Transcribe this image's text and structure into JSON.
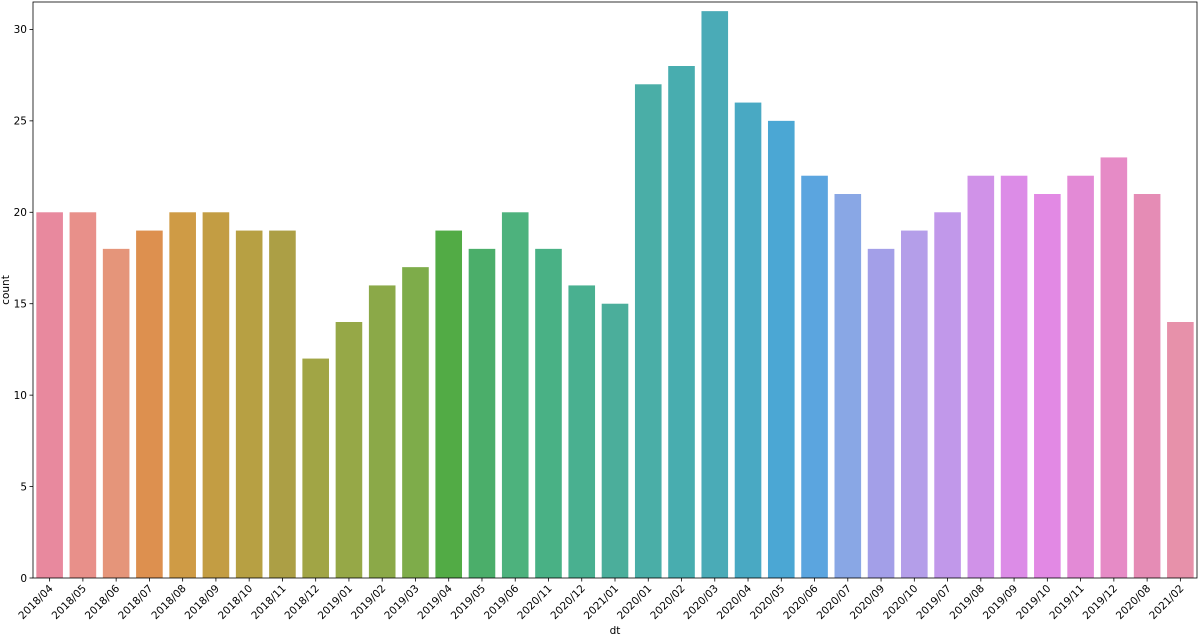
{
  "chart_data": {
    "type": "bar",
    "xlabel": "dt",
    "ylabel": "count",
    "ylim": [
      0,
      31.5
    ],
    "yticks": [
      0,
      5,
      10,
      15,
      20,
      25,
      30
    ],
    "grid": false,
    "categories": [
      "2018/04",
      "2018/05",
      "2018/06",
      "2018/07",
      "2018/08",
      "2018/09",
      "2018/10",
      "2018/11",
      "2018/12",
      "2019/01",
      "2019/02",
      "2019/03",
      "2019/04",
      "2019/05",
      "2019/06",
      "2020/11",
      "2020/12",
      "2021/01",
      "2020/01",
      "2020/02",
      "2020/03",
      "2020/04",
      "2020/05",
      "2020/06",
      "2020/07",
      "2020/09",
      "2020/10",
      "2019/07",
      "2019/08",
      "2019/09",
      "2019/10",
      "2019/11",
      "2019/12",
      "2020/08",
      "2021/02"
    ],
    "values": [
      20,
      20,
      18,
      19,
      20,
      20,
      19,
      19,
      12,
      14,
      16,
      17,
      19,
      18,
      20,
      18,
      16,
      15,
      27,
      28,
      31,
      26,
      25,
      22,
      21,
      18,
      19,
      20,
      22,
      22,
      21,
      22,
      23,
      21,
      14
    ],
    "colors": [
      "#e8899e",
      "#e8908a",
      "#e5957a",
      "#dd904f",
      "#cf9b45",
      "#c39d43",
      "#b7a043",
      "#ac9f45",
      "#a1a545",
      "#96a847",
      "#8ba948",
      "#7eac4a",
      "#52ab45",
      "#4bae6a",
      "#4db27d",
      "#49b185",
      "#49b090",
      "#4bae9b",
      "#4aaea7",
      "#48adaf",
      "#4aabb7",
      "#49a9c3",
      "#4ba7d4",
      "#5ba5df",
      "#89a7e5",
      "#a39fe8",
      "#b49ee9",
      "#c198ea",
      "#d092e8",
      "#dc8ce7",
      "#e289e4",
      "#e38ad6",
      "#e68bc6",
      "#e58cb5",
      "#e791aa"
    ]
  }
}
